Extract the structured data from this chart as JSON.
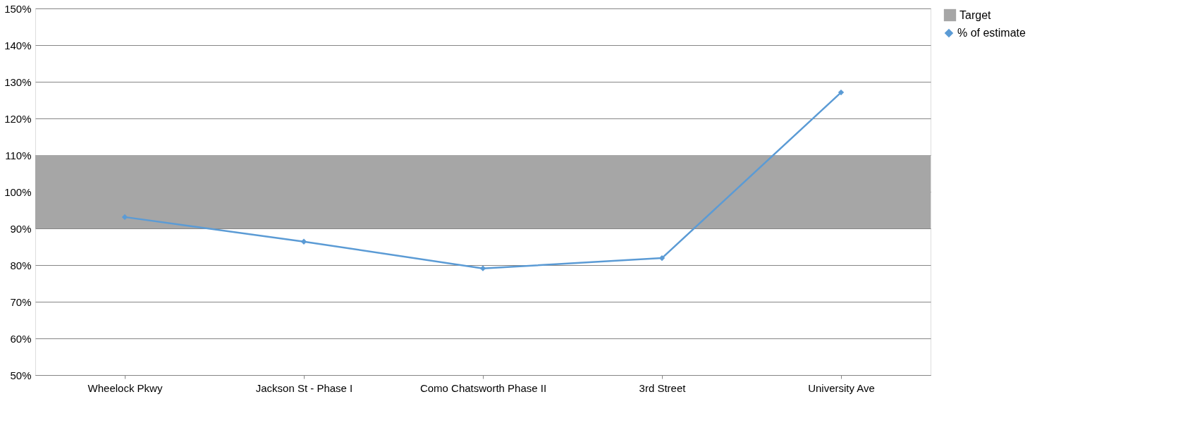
{
  "chart_data": {
    "type": "line",
    "categories": [
      "Wheelock Pkwy",
      "Jackson St - Phase I",
      "Como Chatsworth Phase II",
      "3rd Street",
      "University Ave"
    ],
    "series": [
      {
        "name": "% of estimate",
        "color": "#5b9bd5",
        "values": [
          93.1,
          86.4,
          79.1,
          81.9,
          127.1
        ]
      }
    ],
    "ylim": [
      50,
      150
    ],
    "yticks": [
      {
        "value": 50,
        "label": "50%"
      },
      {
        "value": 60,
        "label": "60%"
      },
      {
        "value": 70,
        "label": "70%"
      },
      {
        "value": 80,
        "label": "80%"
      },
      {
        "value": 90,
        "label": "90%"
      },
      {
        "value": 100,
        "label": "100%"
      },
      {
        "value": 110,
        "label": "110%"
      },
      {
        "value": 120,
        "label": "120%"
      },
      {
        "value": 130,
        "label": "130%"
      },
      {
        "value": 140,
        "label": "140%"
      },
      {
        "value": 150,
        "label": "150%"
      }
    ],
    "bands": [
      {
        "axis": "y",
        "from": 90,
        "to": 110,
        "label": "Target",
        "color": "#a6a6a6"
      }
    ],
    "grid": "y",
    "legend": "right",
    "marker": "diamond",
    "line_style": "solid"
  }
}
